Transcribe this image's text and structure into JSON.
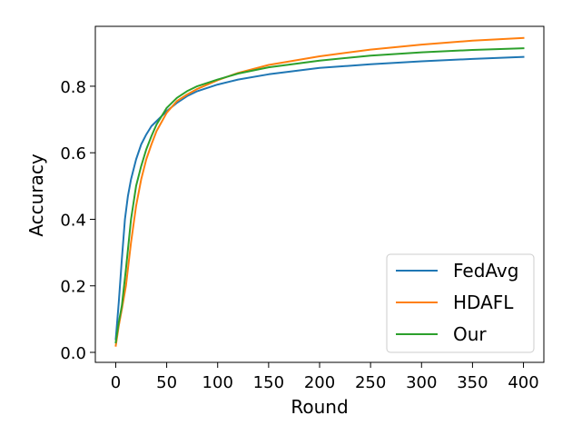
{
  "chart_data": {
    "type": "line",
    "title": "",
    "xlabel": "Round",
    "ylabel": "Accuracy",
    "xlim": [
      -20,
      420
    ],
    "ylim": [
      -0.03,
      0.98
    ],
    "xticks": [
      0,
      50,
      100,
      150,
      200,
      250,
      300,
      350,
      400
    ],
    "yticks": [
      0.0,
      0.2,
      0.4,
      0.6,
      0.8
    ],
    "ytick_labels": [
      "0.0",
      "0.2",
      "0.4",
      "0.6",
      "0.8"
    ],
    "grid": false,
    "legend_position": "lower right",
    "series": [
      {
        "name": "FedAvg",
        "color": "#1f77b4",
        "x": [
          0,
          3,
          6,
          9,
          12,
          15,
          20,
          25,
          30,
          35,
          40,
          50,
          60,
          70,
          80,
          100,
          120,
          150,
          200,
          250,
          300,
          350,
          400
        ],
        "y": [
          0.04,
          0.15,
          0.28,
          0.4,
          0.47,
          0.52,
          0.58,
          0.625,
          0.655,
          0.68,
          0.695,
          0.725,
          0.75,
          0.77,
          0.785,
          0.805,
          0.82,
          0.836,
          0.855,
          0.866,
          0.875,
          0.882,
          0.888
        ]
      },
      {
        "name": "HDAFL",
        "color": "#ff7f0e",
        "x": [
          0,
          3,
          6,
          10,
          15,
          20,
          25,
          30,
          35,
          40,
          50,
          60,
          70,
          80,
          100,
          120,
          150,
          200,
          250,
          300,
          350,
          400
        ],
        "y": [
          0.02,
          0.08,
          0.13,
          0.2,
          0.33,
          0.44,
          0.52,
          0.58,
          0.625,
          0.665,
          0.72,
          0.755,
          0.775,
          0.792,
          0.818,
          0.84,
          0.864,
          0.89,
          0.91,
          0.925,
          0.937,
          0.945
        ]
      },
      {
        "name": "Our",
        "color": "#2ca02c",
        "x": [
          0,
          3,
          6,
          10,
          15,
          20,
          25,
          30,
          35,
          40,
          50,
          60,
          70,
          80,
          100,
          120,
          150,
          200,
          250,
          300,
          350,
          400
        ],
        "y": [
          0.03,
          0.09,
          0.14,
          0.25,
          0.4,
          0.5,
          0.56,
          0.61,
          0.65,
          0.685,
          0.735,
          0.765,
          0.785,
          0.8,
          0.82,
          0.838,
          0.857,
          0.877,
          0.892,
          0.902,
          0.909,
          0.914
        ]
      }
    ]
  }
}
